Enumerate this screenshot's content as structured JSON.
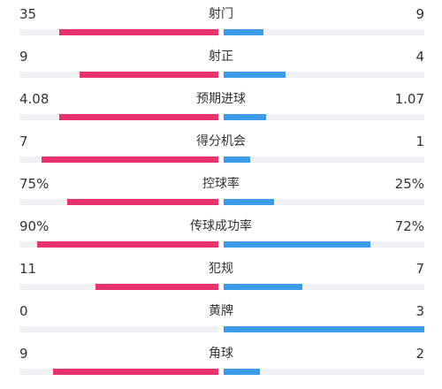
{
  "colors": {
    "home": "#e8336e",
    "away": "#3d9be9",
    "track": "#f0f0f3",
    "text": "#333333"
  },
  "stats": [
    {
      "label": "射门",
      "home": "35",
      "away": "9",
      "home_share": 0.8,
      "away_share": 0.2
    },
    {
      "label": "射正",
      "home": "9",
      "away": "4",
      "home_share": 0.7,
      "away_share": 0.31
    },
    {
      "label": "预期进球",
      "home": "4.08",
      "away": "1.07",
      "home_share": 0.8,
      "away_share": 0.21
    },
    {
      "label": "得分机会",
      "home": "7",
      "away": "1",
      "home_share": 0.89,
      "away_share": 0.13
    },
    {
      "label": "控球率",
      "home": "75%",
      "away": "25%",
      "home_share": 0.76,
      "away_share": 0.25
    },
    {
      "label": "传球成功率",
      "home": "90%",
      "away": "72%",
      "home_share": 0.91,
      "away_share": 0.73
    },
    {
      "label": "犯规",
      "home": "11",
      "away": "7",
      "home_share": 0.62,
      "away_share": 0.39
    },
    {
      "label": "黄牌",
      "home": "0",
      "away": "3",
      "home_share": 0.0,
      "away_share": 1.0
    },
    {
      "label": "角球",
      "home": "9",
      "away": "2",
      "home_share": 0.83,
      "away_share": 0.18
    }
  ]
}
